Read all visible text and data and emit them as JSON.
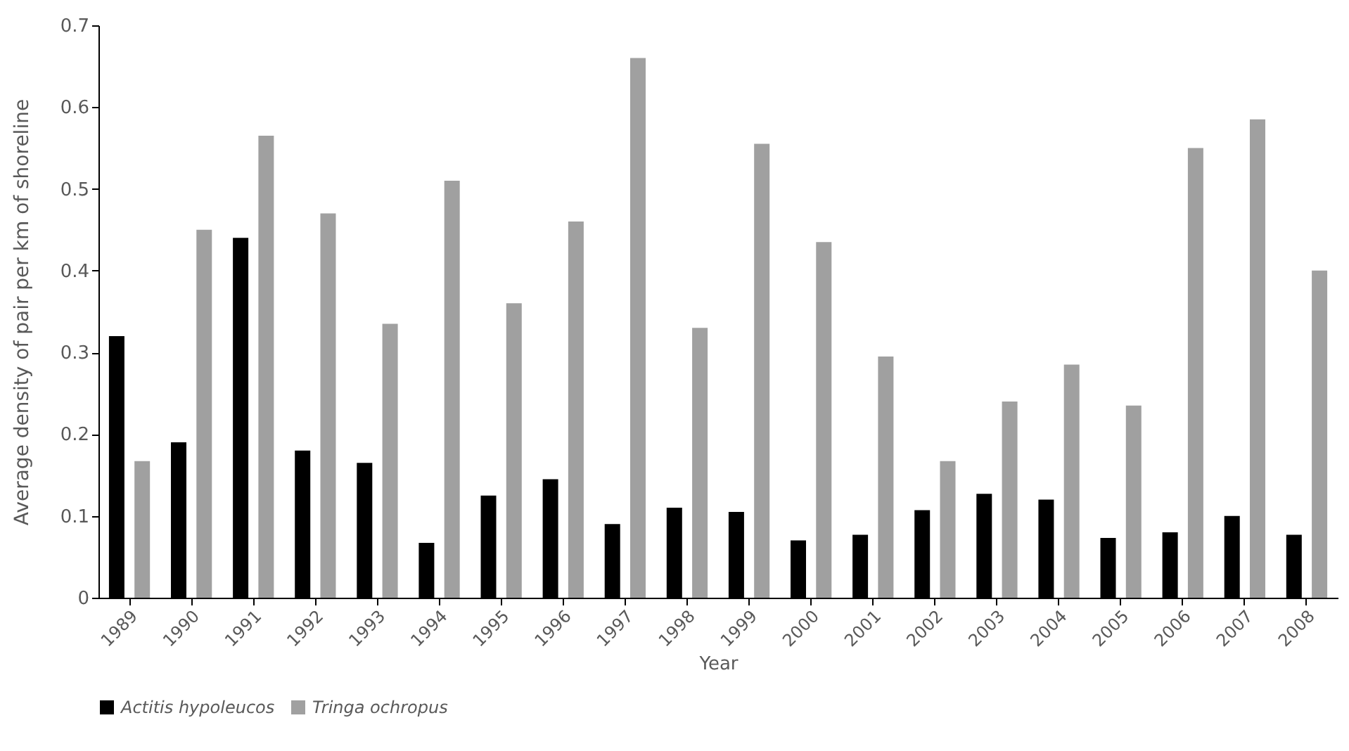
{
  "chart_data": {
    "type": "bar",
    "xlabel": "Year",
    "ylabel": "Average density of pair per km of shoreline",
    "categories": [
      "1989",
      "1990",
      "1991",
      "1992",
      "1993",
      "1994",
      "1995",
      "1996",
      "1997",
      "1998",
      "1999",
      "2000",
      "2001",
      "2002",
      "2003",
      "2004",
      "2005",
      "2006",
      "2007",
      "2008"
    ],
    "series": [
      {
        "name": "Actitis hypoleucos",
        "color": "#000000",
        "values": [
          0.32,
          0.19,
          0.44,
          0.18,
          0.165,
          0.067,
          0.125,
          0.145,
          0.09,
          0.11,
          0.105,
          0.07,
          0.077,
          0.107,
          0.127,
          0.12,
          0.073,
          0.08,
          0.1,
          0.077
        ]
      },
      {
        "name": "Tringa ochropus",
        "color": "#a0a0a0",
        "values": [
          0.167,
          0.45,
          0.565,
          0.47,
          0.335,
          0.51,
          0.36,
          0.46,
          0.66,
          0.33,
          0.555,
          0.435,
          0.295,
          0.167,
          0.24,
          0.285,
          0.235,
          0.55,
          0.585,
          0.4
        ]
      }
    ],
    "ylim": [
      0,
      0.7
    ],
    "yticks": [
      {
        "value": 0,
        "label": "0"
      },
      0.1,
      0.2,
      0.3,
      0.4,
      0.5,
      0.6,
      0.7
    ],
    "grid": false,
    "legend": "bottom"
  }
}
